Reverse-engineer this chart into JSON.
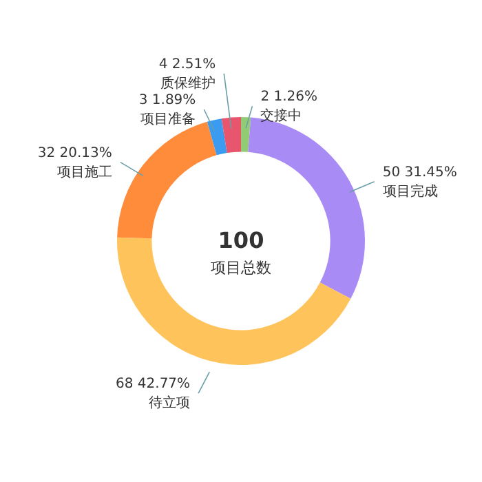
{
  "chart_data": {
    "type": "donut",
    "categories": [
      "交接中",
      "项目完成",
      "待立项",
      "项目施工",
      "项目准备",
      "质保维护"
    ],
    "values": [
      1.26,
      31.45,
      42.77,
      20.13,
      1.89,
      2.51
    ],
    "value_labels": [
      "2 1.26%",
      "50 31.45%",
      "68 42.77%",
      "32 20.13%",
      "3 1.89%",
      "4 2.51%"
    ],
    "colors": [
      "#91cc75",
      "#a88bf5",
      "#ffc35c",
      "#ff8c3b",
      "#3a9bf0",
      "#e8566e"
    ],
    "annotations": [
      "100",
      "项目总数"
    ]
  }
}
